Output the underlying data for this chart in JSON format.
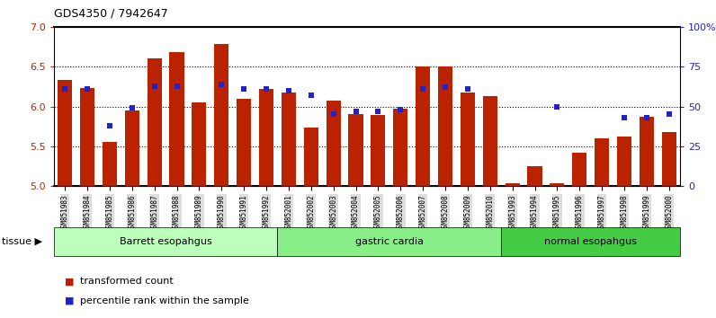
{
  "title": "GDS4350 / 7942647",
  "categories": [
    "GSM851983",
    "GSM851984",
    "GSM851985",
    "GSM851986",
    "GSM851987",
    "GSM851988",
    "GSM851989",
    "GSM851990",
    "GSM851991",
    "GSM851992",
    "GSM852001",
    "GSM852002",
    "GSM852003",
    "GSM852004",
    "GSM852005",
    "GSM852006",
    "GSM852007",
    "GSM852008",
    "GSM852009",
    "GSM852010",
    "GSM851993",
    "GSM851994",
    "GSM851995",
    "GSM851996",
    "GSM851997",
    "GSM851998",
    "GSM851999",
    "GSM852000"
  ],
  "bar_values": [
    6.33,
    6.23,
    5.55,
    5.95,
    6.61,
    6.68,
    6.05,
    6.79,
    6.1,
    6.22,
    6.18,
    5.73,
    6.07,
    5.9,
    5.89,
    5.97,
    6.5,
    6.5,
    6.18,
    6.13,
    5.03,
    5.25,
    5.03,
    5.42,
    5.6,
    5.62,
    5.87,
    5.68
  ],
  "blue_dot_values": [
    61,
    61,
    38,
    49,
    63,
    63,
    null,
    64,
    61,
    61,
    60,
    57,
    45,
    47,
    47,
    48,
    61,
    62,
    61,
    null,
    null,
    null,
    50,
    null,
    null,
    43,
    43,
    45
  ],
  "bar_color": "#bb2200",
  "dot_color": "#2222cc",
  "ylim_left": [
    5.0,
    7.0
  ],
  "ylim_right": [
    0,
    100
  ],
  "yticks_left": [
    5.0,
    5.5,
    6.0,
    6.5,
    7.0
  ],
  "yticks_right": [
    0,
    25,
    50,
    75,
    100
  ],
  "ytick_labels_right": [
    "0",
    "25",
    "50",
    "75",
    "100%"
  ],
  "grid_values": [
    5.5,
    6.0,
    6.5
  ],
  "group_labels": [
    "Barrett esopahgus",
    "gastric cardia",
    "normal esopahgus"
  ],
  "group_starts": [
    0,
    10,
    20
  ],
  "group_ends": [
    10,
    20,
    28
  ],
  "group_colors": [
    "#bbffbb",
    "#88ee88",
    "#44cc44"
  ],
  "baseline": 5.0,
  "legend_labels": [
    "transformed count",
    "percentile rank within the sample"
  ],
  "legend_colors": [
    "#bb2200",
    "#2222cc"
  ],
  "tissue_label": "tissue"
}
